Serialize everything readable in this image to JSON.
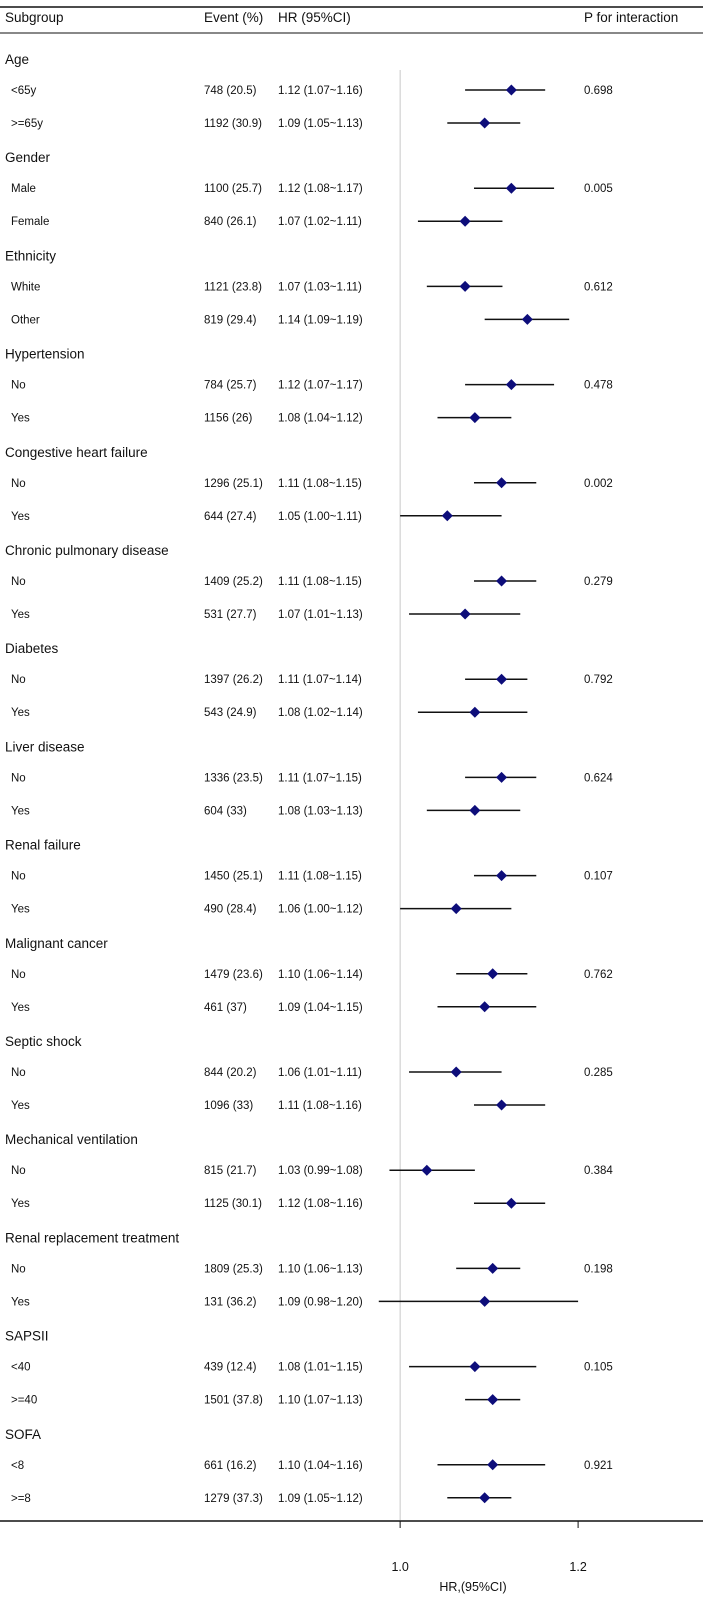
{
  "chart_data": {
    "type": "forest",
    "headers": {
      "subgroup": "Subgroup",
      "event": "Event (%)",
      "hr": "HR (95%CI)",
      "p": "P for interaction"
    },
    "xlabel": "HR,(95%CI)",
    "xlim": [
      0.974,
      1.337
    ],
    "reference": 1.0,
    "ticks": [
      {
        "value": 1.0,
        "label": "1.0"
      },
      {
        "value": 1.2,
        "label": "1.2"
      }
    ],
    "colors": {
      "marker": "#0d0d7a",
      "line": "#111111",
      "ref": "#c8c8c8"
    },
    "groups": [
      {
        "name": "Age",
        "p": "0.698",
        "rows": [
          {
            "label": "<65y",
            "event": "748 (20.5)",
            "hr_text": "1.12 (1.07~1.16)",
            "hr": 1.125,
            "lo": 1.073,
            "hi": 1.163
          },
          {
            "label": ">=65y",
            "event": "1192 (30.9)",
            "hr_text": "1.09 (1.05~1.13)",
            "hr": 1.095,
            "lo": 1.053,
            "hi": 1.135
          }
        ]
      },
      {
        "name": "Gender",
        "p": "0.005",
        "rows": [
          {
            "label": "Male",
            "event": "1100 (25.7)",
            "hr_text": "1.12 (1.08~1.17)",
            "hr": 1.125,
            "lo": 1.083,
            "hi": 1.173
          },
          {
            "label": "Female",
            "event": "840 (26.1)",
            "hr_text": "1.07 (1.02~1.11)",
            "hr": 1.073,
            "lo": 1.02,
            "hi": 1.115
          }
        ]
      },
      {
        "name": "Ethnicity",
        "p": "0.612",
        "rows": [
          {
            "label": "White",
            "event": "1121 (23.8)",
            "hr_text": "1.07 (1.03~1.11)",
            "hr": 1.073,
            "lo": 1.03,
            "hi": 1.115
          },
          {
            "label": "Other",
            "event": "819 (29.4)",
            "hr_text": "1.14 (1.09~1.19)",
            "hr": 1.143,
            "lo": 1.095,
            "hi": 1.19
          }
        ]
      },
      {
        "name": "Hypertension",
        "p": "0.478",
        "rows": [
          {
            "label": "No",
            "event": "784 (25.7)",
            "hr_text": "1.12 (1.07~1.17)",
            "hr": 1.125,
            "lo": 1.073,
            "hi": 1.173
          },
          {
            "label": "Yes",
            "event": "1156 (26)",
            "hr_text": "1.08 (1.04~1.12)",
            "hr": 1.084,
            "lo": 1.042,
            "hi": 1.125
          }
        ]
      },
      {
        "name": "Congestive heart failure",
        "p": "0.002",
        "rows": [
          {
            "label": "No",
            "event": "1296 (25.1)",
            "hr_text": "1.11 (1.08~1.15)",
            "hr": 1.114,
            "lo": 1.083,
            "hi": 1.153
          },
          {
            "label": "Yes",
            "event": "644 (27.4)",
            "hr_text": "1.05 (1.00~1.11)",
            "hr": 1.053,
            "lo": 1.0,
            "hi": 1.114
          }
        ]
      },
      {
        "name": "Chronic pulmonary disease",
        "p": "0.279",
        "rows": [
          {
            "label": "No",
            "event": "1409 (25.2)",
            "hr_text": "1.11 (1.08~1.15)",
            "hr": 1.114,
            "lo": 1.083,
            "hi": 1.153
          },
          {
            "label": "Yes",
            "event": "531 (27.7)",
            "hr_text": "1.07 (1.01~1.13)",
            "hr": 1.073,
            "lo": 1.01,
            "hi": 1.135
          }
        ]
      },
      {
        "name": "Diabetes",
        "p": "0.792",
        "rows": [
          {
            "label": "No",
            "event": "1397 (26.2)",
            "hr_text": "1.11 (1.07~1.14)",
            "hr": 1.114,
            "lo": 1.073,
            "hi": 1.143
          },
          {
            "label": "Yes",
            "event": "543 (24.9)",
            "hr_text": "1.08 (1.02~1.14)",
            "hr": 1.084,
            "lo": 1.02,
            "hi": 1.143
          }
        ]
      },
      {
        "name": "Liver disease",
        "p": "0.624",
        "rows": [
          {
            "label": "No",
            "event": "1336 (23.5)",
            "hr_text": "1.11 (1.07~1.15)",
            "hr": 1.114,
            "lo": 1.073,
            "hi": 1.153
          },
          {
            "label": "Yes",
            "event": "604 (33)",
            "hr_text": "1.08 (1.03~1.13)",
            "hr": 1.084,
            "lo": 1.03,
            "hi": 1.135
          }
        ]
      },
      {
        "name": "Renal failure",
        "p": "0.107",
        "rows": [
          {
            "label": "No",
            "event": "1450 (25.1)",
            "hr_text": "1.11 (1.08~1.15)",
            "hr": 1.114,
            "lo": 1.083,
            "hi": 1.153
          },
          {
            "label": "Yes",
            "event": "490 (28.4)",
            "hr_text": "1.06 (1.00~1.12)",
            "hr": 1.063,
            "lo": 1.0,
            "hi": 1.125
          }
        ]
      },
      {
        "name": "Malignant cancer",
        "p": "0.762",
        "rows": [
          {
            "label": "No",
            "event": "1479 (23.6)",
            "hr_text": "1.10 (1.06~1.14)",
            "hr": 1.104,
            "lo": 1.063,
            "hi": 1.143
          },
          {
            "label": "Yes",
            "event": "461 (37)",
            "hr_text": "1.09 (1.04~1.15)",
            "hr": 1.095,
            "lo": 1.042,
            "hi": 1.153
          }
        ]
      },
      {
        "name": "Septic shock",
        "p": "0.285",
        "rows": [
          {
            "label": "No",
            "event": "844 (20.2)",
            "hr_text": "1.06 (1.01~1.11)",
            "hr": 1.063,
            "lo": 1.01,
            "hi": 1.114
          },
          {
            "label": "Yes",
            "event": "1096 (33)",
            "hr_text": "1.11 (1.08~1.16)",
            "hr": 1.114,
            "lo": 1.083,
            "hi": 1.163
          }
        ]
      },
      {
        "name": "Mechanical ventilation",
        "p": "0.384",
        "rows": [
          {
            "label": "No",
            "event": "815 (21.7)",
            "hr_text": "1.03 (0.99~1.08)",
            "hr": 1.03,
            "lo": 0.988,
            "hi": 1.084
          },
          {
            "label": "Yes",
            "event": "1125 (30.1)",
            "hr_text": "1.12 (1.08~1.16)",
            "hr": 1.125,
            "lo": 1.083,
            "hi": 1.163
          }
        ]
      },
      {
        "name": "Renal replacement treatment",
        "p": "0.198",
        "rows": [
          {
            "label": "No",
            "event": "1809 (25.3)",
            "hr_text": "1.10 (1.06~1.13)",
            "hr": 1.104,
            "lo": 1.063,
            "hi": 1.135
          },
          {
            "label": "Yes",
            "event": "131 (36.2)",
            "hr_text": "1.09 (0.98~1.20)",
            "hr": 1.095,
            "lo": 0.976,
            "hi": 1.2
          }
        ]
      },
      {
        "name": "SAPSII",
        "p": "0.105",
        "rows": [
          {
            "label": "<40",
            "event": "439 (12.4)",
            "hr_text": "1.08 (1.01~1.15)",
            "hr": 1.084,
            "lo": 1.01,
            "hi": 1.153
          },
          {
            "label": ">=40",
            "event": "1501 (37.8)",
            "hr_text": "1.10 (1.07~1.13)",
            "hr": 1.104,
            "lo": 1.073,
            "hi": 1.135
          }
        ]
      },
      {
        "name": "SOFA",
        "p": "0.921",
        "rows": [
          {
            "label": "<8",
            "event": "661 (16.2)",
            "hr_text": "1.10 (1.04~1.16)",
            "hr": 1.104,
            "lo": 1.042,
            "hi": 1.163
          },
          {
            "label": ">=8",
            "event": "1279 (37.3)",
            "hr_text": "1.09 (1.05~1.12)",
            "hr": 1.095,
            "lo": 1.053,
            "hi": 1.125
          }
        ]
      }
    ]
  }
}
